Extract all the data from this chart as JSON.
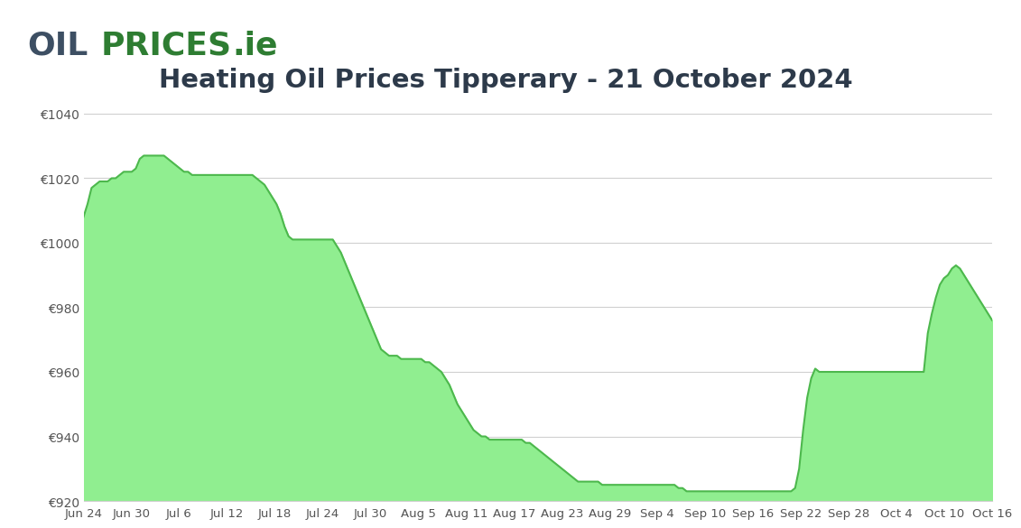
{
  "title": "Heating Oil Prices Tipperary - 21 October 2024",
  "ylim": [
    920,
    1045
  ],
  "yticks": [
    920,
    940,
    960,
    980,
    1000,
    1020,
    1040
  ],
  "ytick_labels": [
    "€920",
    "€940",
    "€960",
    "€980",
    "€1000",
    "€1020",
    "€1040"
  ],
  "fill_color": "#90EE90",
  "line_color": "#4db84d",
  "background_color": "#ffffff",
  "header_bg_color": "#e8eaf2",
  "title_color": "#2d3a4a",
  "grid_color": "#d0d0d0",
  "xtick_labels": [
    "Jun 24",
    "Jun 30",
    "Jul 6",
    "Jul 12",
    "Jul 18",
    "Jul 24",
    "Jul 30",
    "Aug 5",
    "Aug 11",
    "Aug 17",
    "Aug 23",
    "Aug 29",
    "Sep 4",
    "Sep 10",
    "Sep 16",
    "Sep 22",
    "Sep 28",
    "Oct 4",
    "Oct 10",
    "Oct 16"
  ],
  "prices": [
    1008,
    1012,
    1017,
    1018,
    1019,
    1019,
    1019,
    1020,
    1020,
    1021,
    1022,
    1022,
    1022,
    1023,
    1026,
    1027,
    1027,
    1027,
    1027,
    1027,
    1027,
    1026,
    1025,
    1024,
    1023,
    1022,
    1022,
    1021,
    1021,
    1021,
    1021,
    1021,
    1021,
    1021,
    1021,
    1021,
    1021,
    1021,
    1021,
    1021,
    1021,
    1021,
    1021,
    1020,
    1019,
    1018,
    1016,
    1014,
    1012,
    1009,
    1005,
    1002,
    1001,
    1001,
    1001,
    1001,
    1001,
    1001,
    1001,
    1001,
    1001,
    1001,
    1001,
    999,
    997,
    994,
    991,
    988,
    985,
    982,
    979,
    976,
    973,
    970,
    967,
    966,
    965,
    965,
    965,
    964,
    964,
    964,
    964,
    964,
    964,
    963,
    963,
    962,
    961,
    960,
    958,
    956,
    953,
    950,
    948,
    946,
    944,
    942,
    941,
    940,
    940,
    939,
    939,
    939,
    939,
    939,
    939,
    939,
    939,
    939,
    938,
    938,
    937,
    936,
    935,
    934,
    933,
    932,
    931,
    930,
    929,
    928,
    927,
    926,
    926,
    926,
    926,
    926,
    926,
    925,
    925,
    925,
    925,
    925,
    925,
    925,
    925,
    925,
    925,
    925,
    925,
    925,
    925,
    925,
    925,
    925,
    925,
    925,
    924,
    924,
    923,
    923,
    923,
    923,
    923,
    923,
    923,
    923,
    923,
    923,
    923,
    923,
    923,
    923,
    923,
    923,
    923,
    923,
    923,
    923,
    923,
    923,
    923,
    923,
    923,
    923,
    923,
    924,
    930,
    942,
    952,
    958,
    961,
    960,
    960,
    960,
    960,
    960,
    960,
    960,
    960,
    960,
    960,
    960,
    960,
    960,
    960,
    960,
    960,
    960,
    960,
    960,
    960,
    960,
    960,
    960,
    960,
    960,
    960,
    960,
    972,
    978,
    983,
    987,
    989,
    990,
    992,
    993,
    992,
    990,
    988,
    986,
    984,
    982,
    980,
    978,
    976
  ]
}
